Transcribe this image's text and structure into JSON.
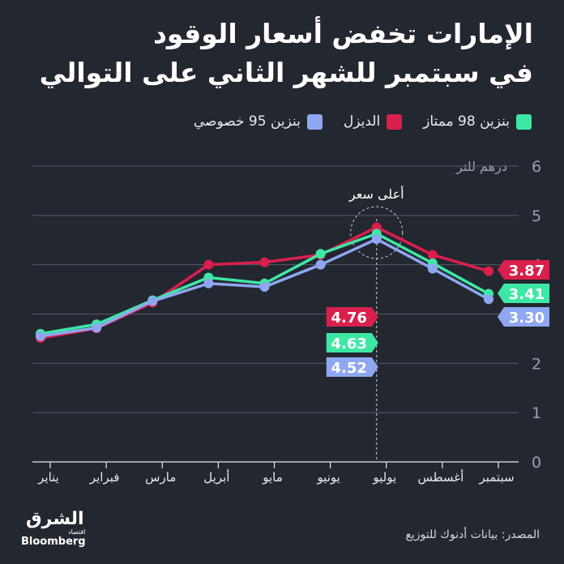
{
  "title_line1": "الإمارات تخفض أسعار الوقود",
  "title_line2": "في سبتمبر للشهر الثاني على التوالي",
  "legend": [
    {
      "label": "بنزين 98 ممتاز",
      "color": "#3de8a4"
    },
    {
      "label": "الديزل",
      "color": "#d91f4b"
    },
    {
      "label": "بنزين 95 خصوصي",
      "color": "#8ea7f0"
    }
  ],
  "unit_label": "درهم للتر",
  "annotation": "أعلى سعر",
  "source": "المصدر: بيانات أدنوك للتوزيع",
  "logo": {
    "arabic": "الشرق",
    "sub": "اقتصاد",
    "english": "Bloomberg"
  },
  "chart_data": {
    "type": "line",
    "categories": [
      "يناير",
      "فبراير",
      "مارس",
      "أبريل",
      "مايو",
      "يونيو",
      "يوليو",
      "أغسطس",
      "سبتمبر"
    ],
    "ylim": [
      0,
      6
    ],
    "yticks": [
      "0",
      "1",
      "2",
      "3",
      "4",
      "5",
      "6"
    ],
    "ylabel": "درهم للتر",
    "series": [
      {
        "name": "الديزل",
        "color": "#d91f4b",
        "values": [
          2.51,
          2.71,
          3.23,
          4.0,
          4.05,
          4.2,
          4.76,
          4.2,
          3.87
        ]
      },
      {
        "name": "بنزين 98 ممتاز",
        "color": "#3de8a4",
        "values": [
          2.6,
          2.79,
          3.28,
          3.74,
          3.62,
          4.22,
          4.63,
          4.03,
          3.41
        ]
      },
      {
        "name": "بنزين 95 خصوصي",
        "color": "#8ea7f0",
        "values": [
          2.55,
          2.72,
          3.26,
          3.62,
          3.55,
          4.0,
          4.52,
          3.92,
          3.3
        ]
      }
    ],
    "highlight_index": 6,
    "highlight_labels": [
      {
        "text": "4.76",
        "color": "#d91f4b"
      },
      {
        "text": "4.63",
        "color": "#3de8a4"
      },
      {
        "text": "4.52",
        "color": "#8ea7f0"
      }
    ],
    "end_labels": [
      {
        "text": "3.87",
        "color": "#d91f4b"
      },
      {
        "text": "3.41",
        "color": "#3de8a4"
      },
      {
        "text": "3.30",
        "color": "#8ea7f0"
      }
    ]
  }
}
